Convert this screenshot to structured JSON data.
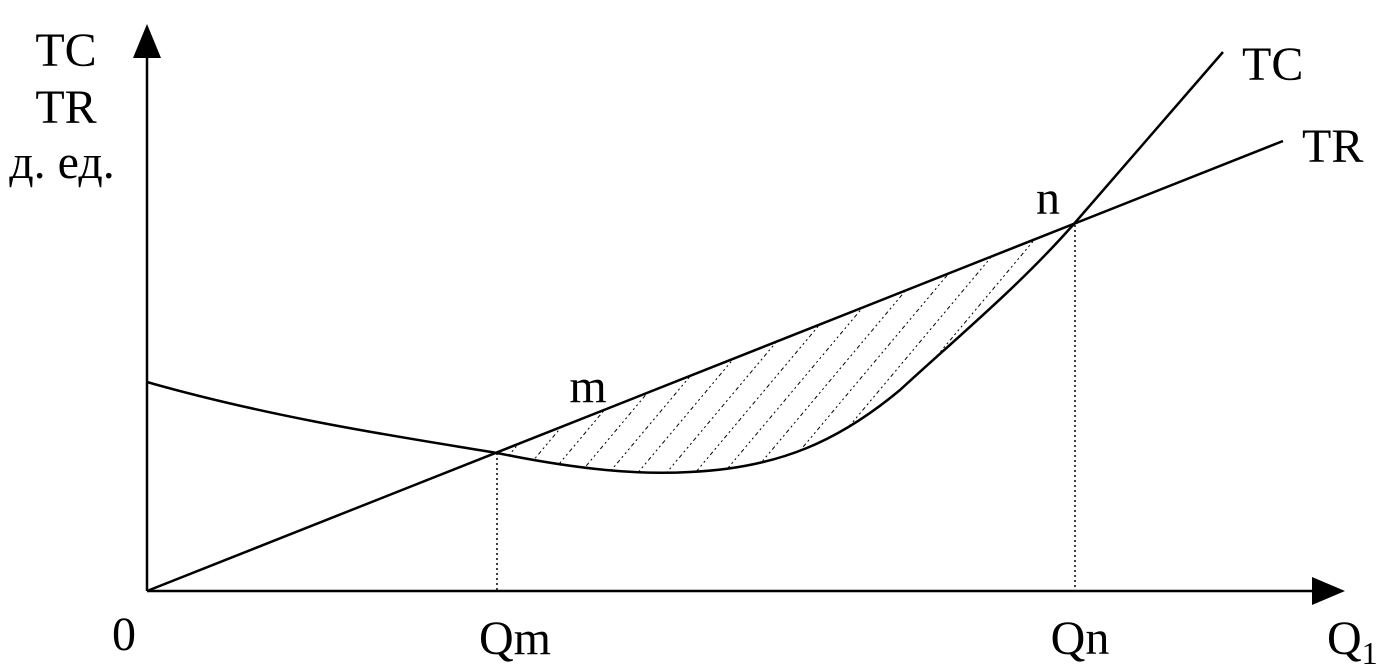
{
  "axes": {
    "y_label": [
      "TC",
      "TR",
      "д. ед."
    ],
    "origin": "0",
    "x_label": {
      "text": "Q",
      "subscript": "1"
    }
  },
  "x_marks": [
    "Qm",
    "Qn"
  ],
  "points": [
    "m",
    "n"
  ],
  "curves": {
    "tc": "TC",
    "tr": "TR"
  }
}
